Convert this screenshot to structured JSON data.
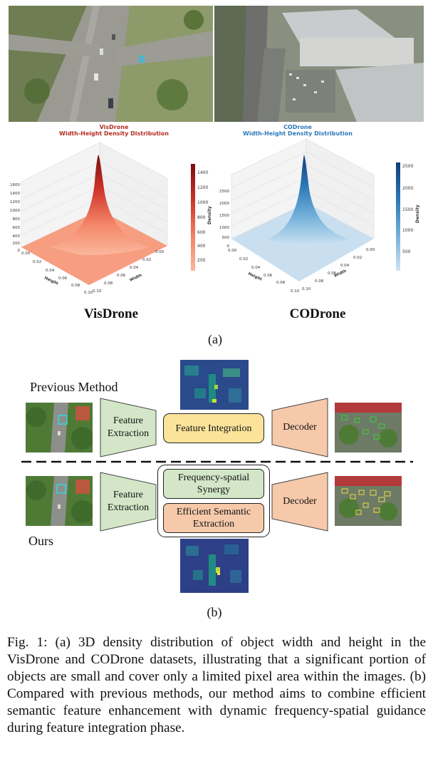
{
  "panel_a": {
    "visdrone": {
      "title_line1": "VisDrone",
      "title_line2": "Width-Height Density Distribution",
      "name": "VisDrone",
      "color": "#b62d22",
      "colorbar_ticks": [
        "1400",
        "1200",
        "1000",
        "800",
        "600",
        "400",
        "200"
      ],
      "colorbar_label": "Density",
      "z_ticks": [
        "1600",
        "1400",
        "1200",
        "1000",
        "800",
        "600",
        "400",
        "200",
        "0"
      ],
      "height_ticks": [
        "0.00",
        "0.02",
        "0.04",
        "0.06",
        "0.08",
        "0.10"
      ],
      "width_ticks": [
        "0.00",
        "0.02",
        "0.04",
        "0.06",
        "0.08",
        "0.10"
      ],
      "height_axis": "Height",
      "width_axis": "Width"
    },
    "codrone": {
      "title_line1": "CODrone",
      "title_line2": "Width-Height Density Distribution",
      "name": "CODrone",
      "color": "#2d7ab9",
      "colorbar_ticks": [
        "2500",
        "2000",
        "1500",
        "1000",
        "500"
      ],
      "colorbar_label": "Density",
      "z_ticks": [
        "2500",
        "2000",
        "1500",
        "1000",
        "500",
        "0"
      ],
      "height_ticks": [
        "0.00",
        "0.02",
        "0.04",
        "0.06",
        "0.08",
        "0.10"
      ],
      "width_ticks": [
        "0.00",
        "0.02",
        "0.04",
        "0.06",
        "0.08",
        "0.10"
      ],
      "height_axis": "Height",
      "width_axis": "Width"
    },
    "sublabel": "(a)"
  },
  "panel_b": {
    "previous_label": "Previous Method",
    "ours_label": "Ours",
    "feature_extraction": "Feature Extraction",
    "feature_integration": "Feature Integration",
    "decoder": "Decoder",
    "frequency_spatial": "Frequency-spatial Synergy",
    "efficient_semantic": "Efficient Semantic Extraction",
    "sublabel": "(b)",
    "colors": {
      "green": "#d3e7c8",
      "yellow": "#fbe49a",
      "orange": "#f6c9aa"
    }
  },
  "caption": "Fig. 1: (a) 3D density distribution of object width and height in the VisDrone and CODrone datasets, illustrating that a significant portion of objects are small and cover only a limited pixel area within the images. (b) Compared with previous methods, our method aims to combine efficient semantic feature enhancement with dynamic frequency-spatial guidance during feature integration phase."
}
